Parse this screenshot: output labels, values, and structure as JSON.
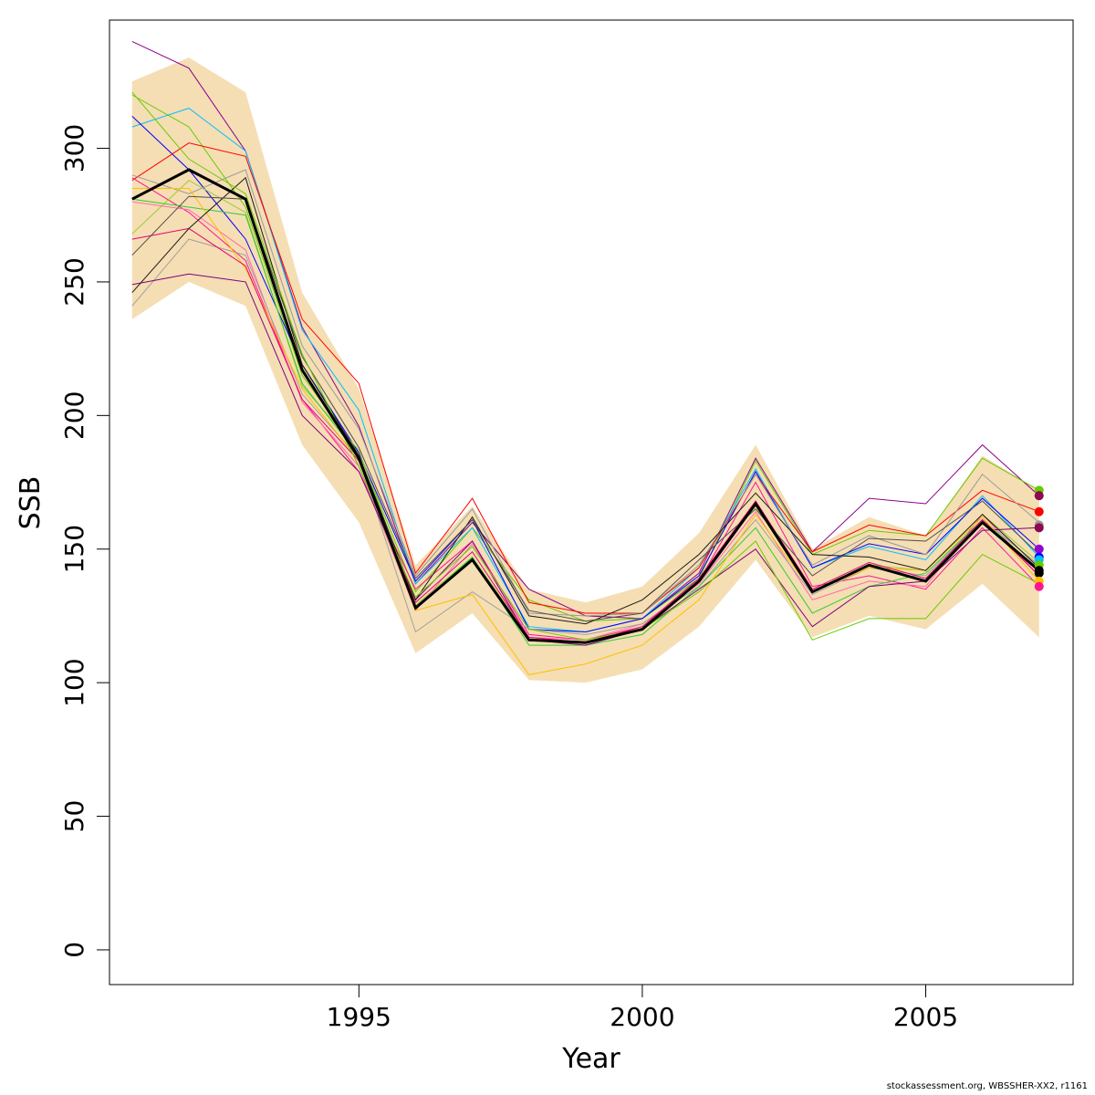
{
  "chart_data": {
    "type": "line",
    "xlabel": "Year",
    "ylabel": "SSB",
    "xlim": [
      1990.6,
      2007.6
    ],
    "ylim": [
      -13,
      348
    ],
    "x_ticks": [
      1995,
      2000,
      2005
    ],
    "x_tick_labels": [
      "1995",
      "2000",
      "2005"
    ],
    "y_ticks": [
      0,
      50,
      100,
      150,
      200,
      250,
      300
    ],
    "y_tick_labels": [
      "0",
      "50",
      "100",
      "150",
      "200",
      "250",
      "300"
    ],
    "grid": false,
    "legend": "none",
    "x": [
      1991,
      1992,
      1993,
      1994,
      1995,
      1996,
      1997,
      1998,
      1999,
      2000,
      2001,
      2002,
      2003,
      2004,
      2005,
      2006,
      2007
    ],
    "band": {
      "color": "#f5deb3",
      "lower": [
        236,
        250,
        241,
        189,
        160,
        111,
        126,
        101,
        100,
        105,
        121,
        146,
        117,
        125,
        120,
        137,
        117
      ],
      "upper": [
        325,
        334,
        321,
        246,
        210,
        144,
        166,
        135,
        130,
        136,
        156,
        189,
        150,
        162,
        155,
        185,
        172
      ]
    },
    "main_series": {
      "color": "#000000",
      "values": [
        281,
        292,
        281,
        217,
        184,
        128,
        146,
        116,
        115,
        120,
        138,
        167,
        134,
        144,
        138,
        160,
        142
      ]
    },
    "retro_series": [
      {
        "color": "#8b008b",
        "values": [
          340,
          330,
          299,
          233,
          196,
          137,
          160,
          135,
          125,
          124,
          141,
          184,
          149,
          169,
          167,
          189,
          170
        ]
      },
      {
        "color": "#66cc00",
        "values": [
          320,
          308,
          278,
          215,
          186,
          134,
          158,
          131,
          123,
          124,
          139,
          183,
          148,
          157,
          155,
          184,
          172
        ]
      },
      {
        "color": "#00bfff",
        "values": [
          308,
          315,
          299,
          232,
          202,
          137,
          158,
          121,
          119,
          124,
          143,
          180,
          143,
          151,
          146,
          170,
          147
        ]
      },
      {
        "color": "#0000ff",
        "values": [
          312,
          292,
          266,
          219,
          186,
          138,
          161,
          120,
          119,
          124,
          140,
          179,
          143,
          152,
          148,
          169,
          150
        ]
      },
      {
        "color": "#ff0000",
        "values": [
          288,
          302,
          297,
          236,
          212,
          141,
          169,
          130,
          126,
          126,
          143,
          178,
          149,
          159,
          155,
          172,
          164
        ]
      },
      {
        "color": "#999999",
        "values": [
          290,
          283,
          292,
          226,
          195,
          140,
          165,
          126,
          125,
          126,
          144,
          178,
          144,
          155,
          148,
          178,
          160
        ]
      },
      {
        "color": "#ff1493",
        "values": [
          289,
          276,
          258,
          206,
          179,
          135,
          153,
          118,
          116,
          121,
          138,
          175,
          136,
          140,
          135,
          158,
          136
        ]
      },
      {
        "color": "#9acd32",
        "values": [
          268,
          288,
          276,
          211,
          187,
          129,
          147,
          117,
          115,
          121,
          139,
          166,
          134,
          144,
          142,
          163,
          145
        ]
      },
      {
        "color": "#ff69b4",
        "values": [
          280,
          277,
          262,
          205,
          181,
          127,
          152,
          117,
          116,
          122,
          137,
          164,
          131,
          138,
          136,
          163,
          140
        ]
      },
      {
        "color": "#a0a0a0",
        "values": [
          241,
          266,
          260,
          208,
          184,
          119,
          134,
          120,
          118,
          122,
          136,
          161,
          133,
          143,
          140,
          161,
          144
        ]
      },
      {
        "color": "#32cd32",
        "values": [
          281,
          278,
          275,
          212,
          185,
          128,
          147,
          114,
          114,
          118,
          136,
          158,
          126,
          136,
          141,
          161,
          142
        ]
      },
      {
        "color": "#7f007f",
        "values": [
          249,
          253,
          250,
          200,
          179,
          131,
          153,
          116,
          114,
          120,
          135,
          150,
          121,
          136,
          138,
          157,
          158
        ]
      },
      {
        "color": "#ffbf00",
        "values": [
          285,
          285,
          255,
          210,
          183,
          127,
          133,
          103,
          107,
          114,
          131,
          163,
          134,
          143,
          142,
          162,
          138
        ]
      },
      {
        "color": "#e6007a",
        "values": [
          266,
          270,
          256,
          206,
          183,
          130,
          149,
          117,
          115,
          121,
          139,
          168,
          135,
          145,
          139,
          161,
          140
        ]
      },
      {
        "color": "#1a1a1a",
        "values": [
          246,
          270,
          289,
          219,
          185,
          131,
          162,
          125,
          122,
          131,
          148,
          171,
          148,
          147,
          142,
          163,
          143
        ]
      },
      {
        "color": "#4d4d4d",
        "values": [
          260,
          282,
          281,
          222,
          188,
          139,
          161,
          127,
          123,
          126,
          146,
          165,
          140,
          154,
          153,
          168,
          148
        ]
      },
      {
        "color": "#66cc00",
        "values": [
          321,
          296,
          283,
          223,
          181,
          132,
          151,
          120,
          116,
          120,
          134,
          153,
          116,
          124,
          124,
          148,
          137
        ]
      }
    ],
    "end_points": [
      {
        "value": 172,
        "color": "#66cc00"
      },
      {
        "value": 170,
        "color": "#8b0a50"
      },
      {
        "value": 164,
        "color": "#ff0000"
      },
      {
        "value": 159,
        "color": "#999999"
      },
      {
        "value": 158,
        "color": "#8b0a50"
      },
      {
        "value": 150,
        "color": "#9400d3"
      },
      {
        "value": 147,
        "color": "#0000ff"
      },
      {
        "value": 146,
        "color": "#00bfff"
      },
      {
        "value": 144,
        "color": "#66cc00"
      },
      {
        "value": 142,
        "color": "#000000"
      },
      {
        "value": 141,
        "color": "#000000"
      },
      {
        "value": 138,
        "color": "#ffbf00"
      },
      {
        "value": 136,
        "color": "#ff1493"
      }
    ]
  },
  "credit": "stockassessment.org, WBSSHER-XX2, r1161"
}
